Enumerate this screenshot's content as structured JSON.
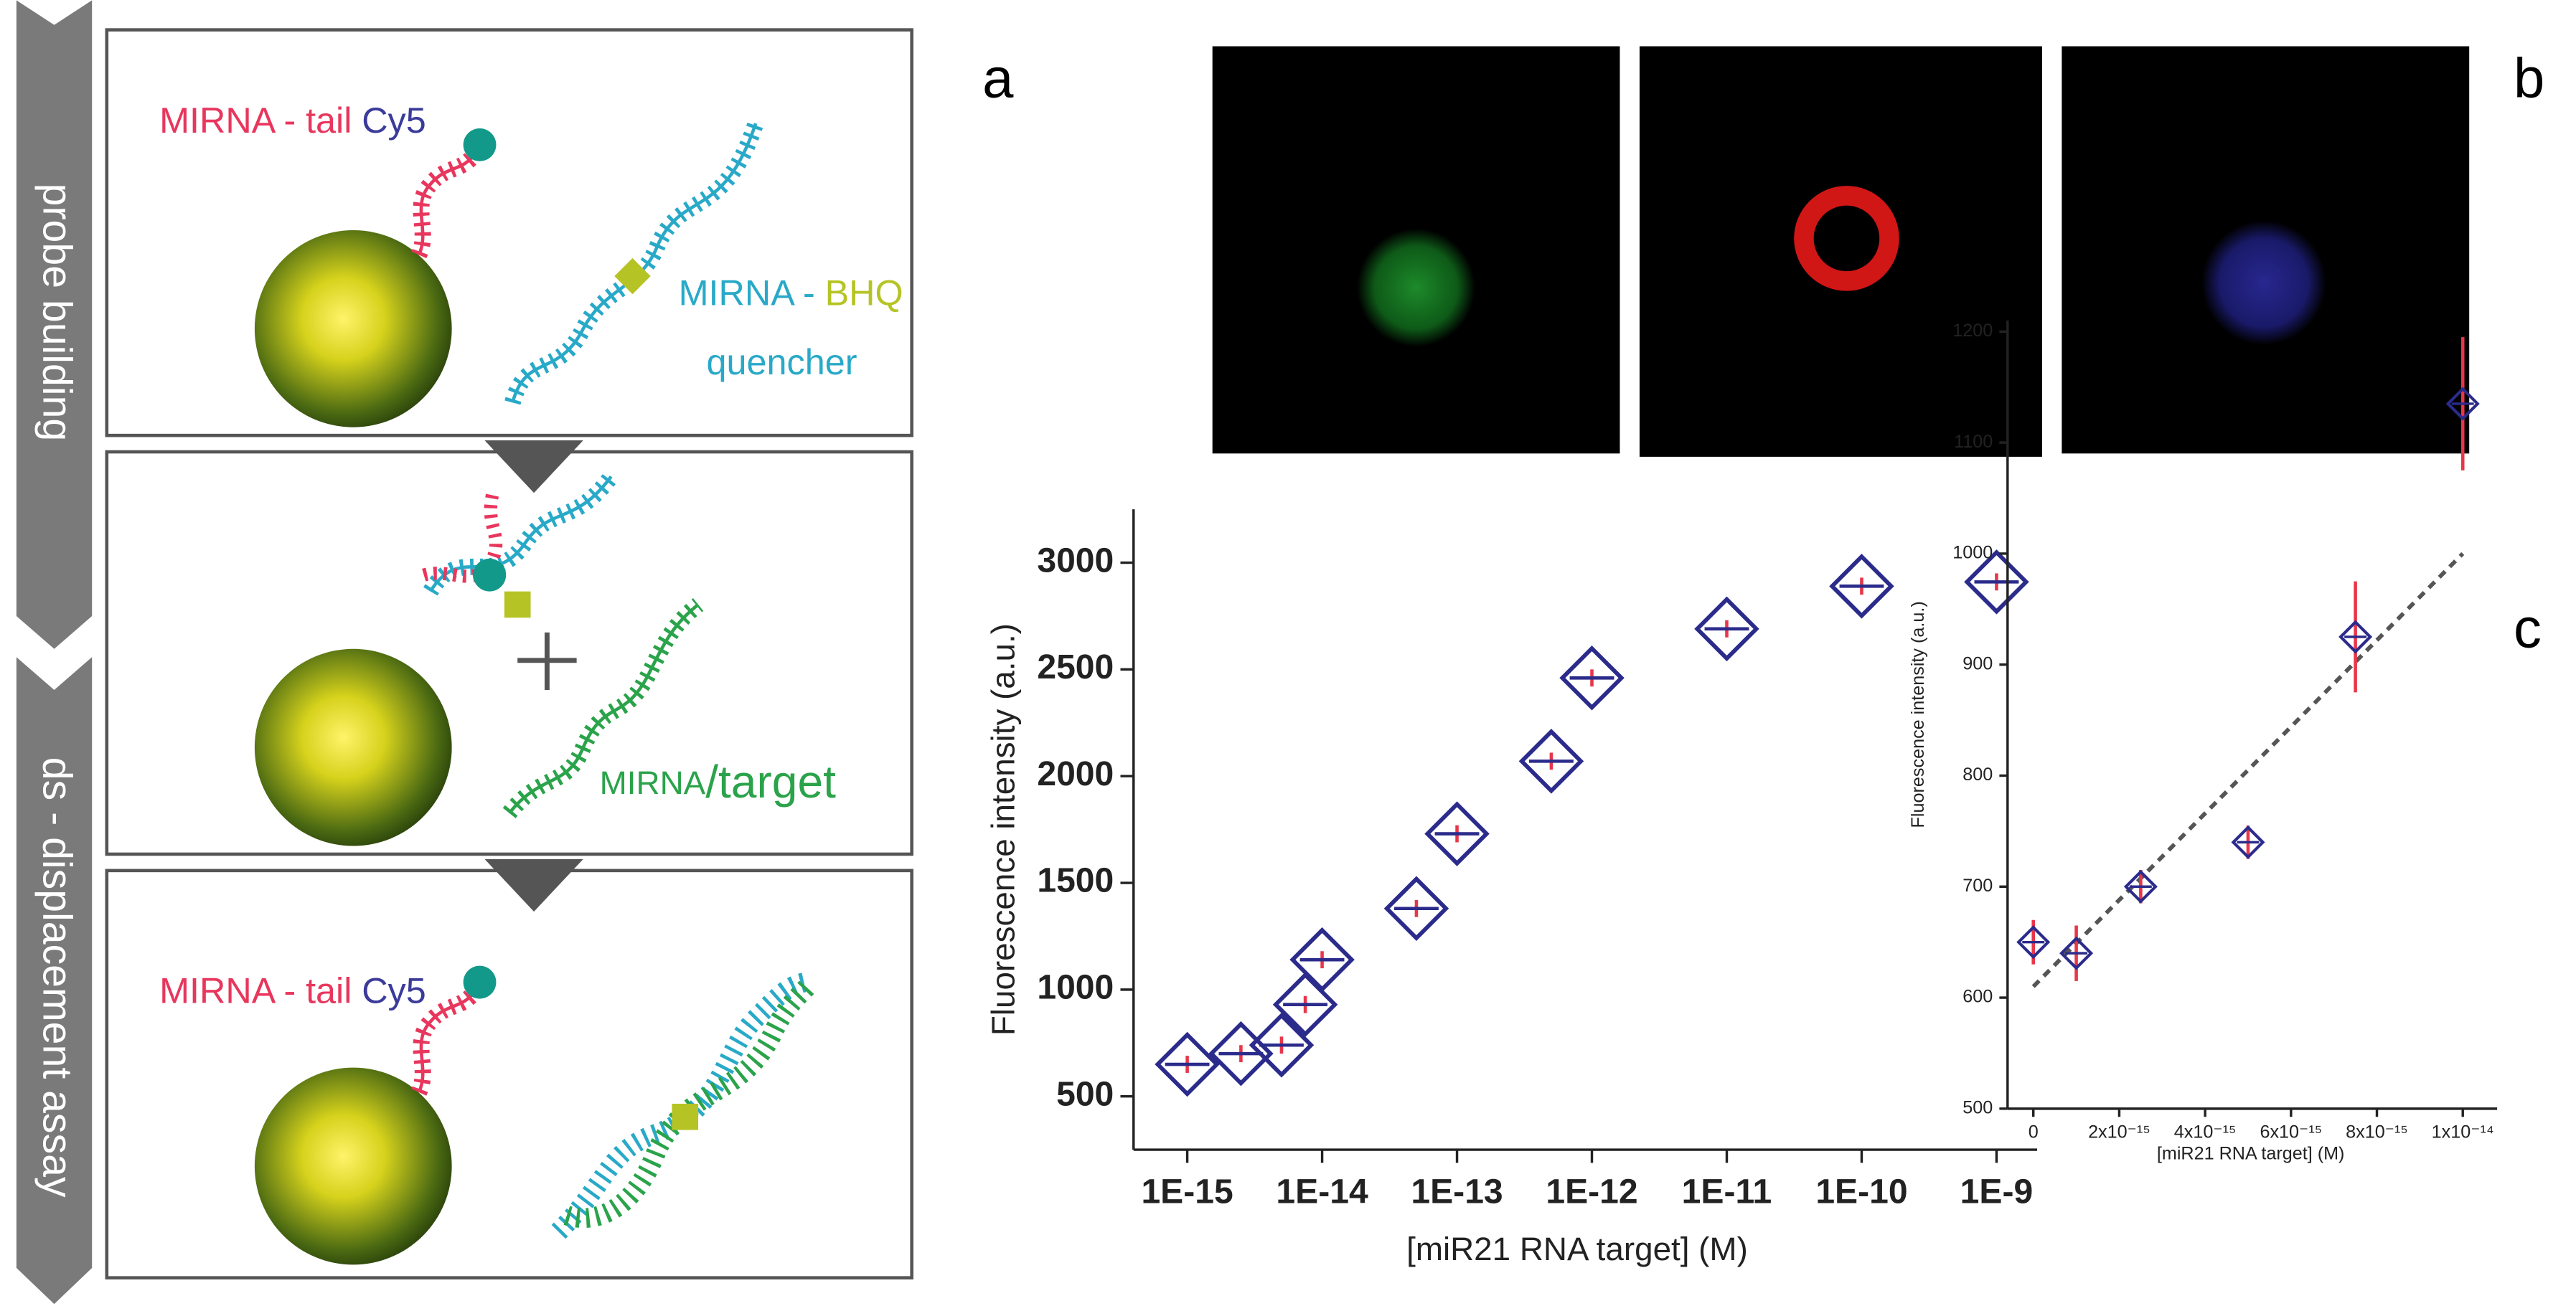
{
  "schematic": {
    "steps": [
      "probe building",
      "ds - displacement assay"
    ],
    "box1": {
      "probe": [
        "MIRNA -",
        "tail",
        "Cy5"
      ],
      "quencher": [
        "MIRNA -",
        "BHQ",
        "quencher"
      ]
    },
    "box2": {
      "target": [
        "MIRNA",
        "/target"
      ]
    },
    "box3": {
      "probe": [
        "MIRNA -",
        "tail",
        "Cy5"
      ]
    }
  },
  "panels": [
    "a",
    "b",
    "c"
  ],
  "chart_data": [
    {
      "type": "scatter",
      "xscale": "log",
      "xlabel": "[miR21 RNA target] (M)",
      "ylabel": "Fluorescence intensity (a.u.)",
      "x": [
        1e-15,
        2.5e-15,
        5e-15,
        7.5e-15,
        1e-14,
        5e-14,
        1e-13,
        5e-13,
        1e-12,
        1e-11,
        1e-10,
        1e-09
      ],
      "values": [
        650,
        700,
        740,
        930,
        1140,
        1380,
        1730,
        2070,
        2460,
        2690,
        2890,
        2910
      ],
      "errors": [
        40,
        40,
        40,
        40,
        40,
        40,
        40,
        40,
        40,
        40,
        40,
        40
      ],
      "color": "#2b2b8c",
      "error_color": "#e8364a",
      "xlim": [
        4e-16,
        2e-09
      ],
      "xticks": [
        {
          "value": 1e-15,
          "label": "1E-15"
        },
        {
          "value": 1e-14,
          "label": "1E-14"
        },
        {
          "value": 1e-13,
          "label": "1E-13"
        },
        {
          "value": 1e-12,
          "label": "1E-12"
        },
        {
          "value": 1e-11,
          "label": "1E-11"
        },
        {
          "value": 1e-10,
          "label": "1E-10"
        },
        {
          "value": 1e-09,
          "label": "1E-9"
        }
      ],
      "ylim": [
        250,
        3250
      ],
      "yticks": [
        500,
        1000,
        1500,
        2000,
        2500,
        3000
      ]
    },
    {
      "type": "scatter",
      "xscale": "linear",
      "xlabel": "[miR21 RNA target] (M)",
      "ylabel": "Fluorescence intensity (a.u.)",
      "x": [
        0,
        1e-15,
        2.5e-15,
        5e-15,
        7.5e-15,
        1e-14
      ],
      "values": [
        650,
        640,
        700,
        740,
        925,
        1135
      ],
      "errors": [
        20,
        25,
        15,
        15,
        50,
        60
      ],
      "color": "#2b2b8c",
      "error_color": "#e8364a",
      "trend": {
        "x": [
          0,
          1e-14
        ],
        "y": [
          610,
          1000
        ],
        "color": "#555555"
      },
      "xlim": [
        -6e-16,
        1.08e-14
      ],
      "xticks": [
        0,
        {
          "value": 2e-15,
          "label": "2x10⁻¹⁵"
        },
        {
          "value": 4e-15,
          "label": "4x10⁻¹⁵"
        },
        {
          "value": 6e-15,
          "label": "6x10⁻¹⁵"
        },
        {
          "value": 8e-15,
          "label": "8x10⁻¹⁵"
        },
        {
          "value": 1e-14,
          "label": "1x10⁻¹⁴"
        }
      ],
      "ylim": [
        500,
        1210
      ],
      "yticks": [
        500,
        600,
        700,
        800,
        900,
        1000,
        1100,
        1200
      ]
    }
  ]
}
